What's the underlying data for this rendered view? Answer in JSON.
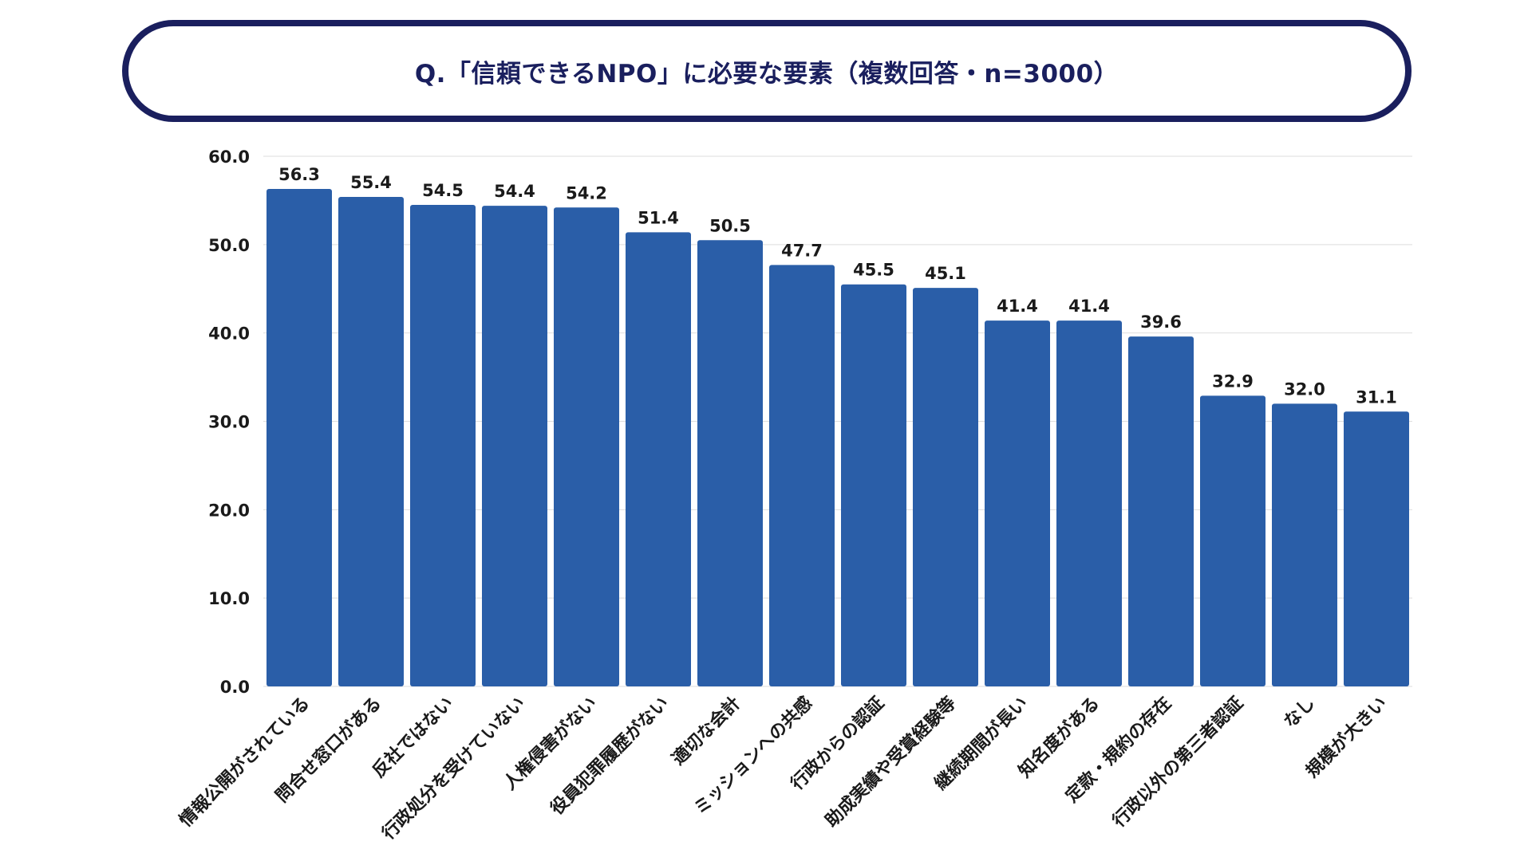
{
  "chart_data": {
    "type": "bar",
    "title": "Q.「信頼できるNPO」に必要な要素（複数回答・n=3000）",
    "xlabel": "",
    "ylabel": "",
    "ylim": [
      0,
      60
    ],
    "yticks": [
      "0.0",
      "10.0",
      "20.0",
      "30.0",
      "40.0",
      "50.0",
      "60.0"
    ],
    "grid": true,
    "bar_color": "#2a5ea8",
    "title_color": "#1a1f5e",
    "categories": [
      "情報公開がされている",
      "問合せ窓口がある",
      "反社ではない",
      "行政処分を受けていない",
      "人権侵害がない",
      "役員犯罪履歴がない",
      "適切な会計",
      "ミッションへの共感",
      "行政からの認証",
      "助成実績や受賞経験等",
      "継続期間が長い",
      "知名度がある",
      "定款・規約の存在",
      "行政以外の第三者認証",
      "なし",
      "規模が大きい"
    ],
    "values": [
      56.3,
      55.4,
      54.5,
      54.4,
      54.2,
      51.4,
      50.5,
      47.7,
      45.5,
      45.1,
      41.4,
      41.4,
      39.6,
      32.9,
      32.0,
      31.1
    ],
    "value_labels": [
      "56.3",
      "55.4",
      "54.5",
      "54.4",
      "54.2",
      "51.4",
      "50.5",
      "47.7",
      "45.5",
      "45.1",
      "41.4",
      "41.4",
      "39.6",
      "32.9",
      "32.0",
      "31.1"
    ]
  }
}
